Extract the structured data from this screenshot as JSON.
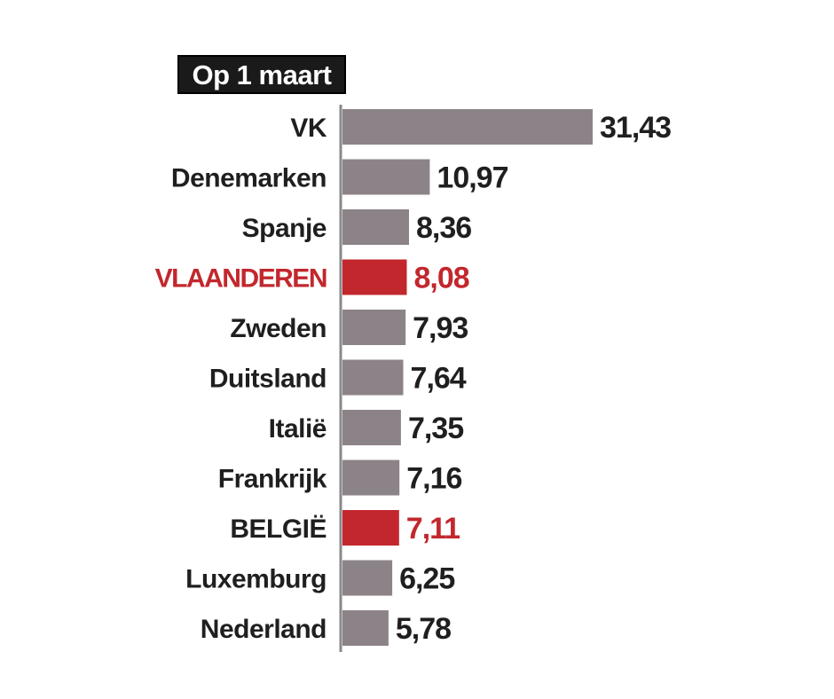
{
  "chart_data": {
    "type": "bar",
    "orientation": "horizontal",
    "title": "Op 1 maart",
    "categories": [
      "VK",
      "Denemarken",
      "Spanje",
      "VLAANDEREN",
      "Zweden",
      "Duitsland",
      "Italië",
      "Frankrijk",
      "BELGIË",
      "Luxemburg",
      "Nederland"
    ],
    "values": [
      31.43,
      10.97,
      8.36,
      8.08,
      7.93,
      7.64,
      7.35,
      7.16,
      7.11,
      6.25,
      5.78
    ],
    "value_labels": [
      "31,43",
      "10,97",
      "8,36",
      "8,08",
      "7,93",
      "7,64",
      "7,35",
      "7,16",
      "7,11",
      "6,25",
      "5,78"
    ],
    "highlighted": [
      "VLAANDEREN",
      "BELGIË"
    ],
    "xlim": [
      0,
      31.43
    ],
    "grid": false,
    "legend": "none"
  },
  "colors": {
    "bar": "#8c8388",
    "highlight_bar": "#c2272d",
    "label": "#1f1f1f",
    "highlight_label": "#c2272d",
    "title_bg": "#1a1a1a",
    "title_text": "#ffffff",
    "axis": "#8a8a8a"
  }
}
